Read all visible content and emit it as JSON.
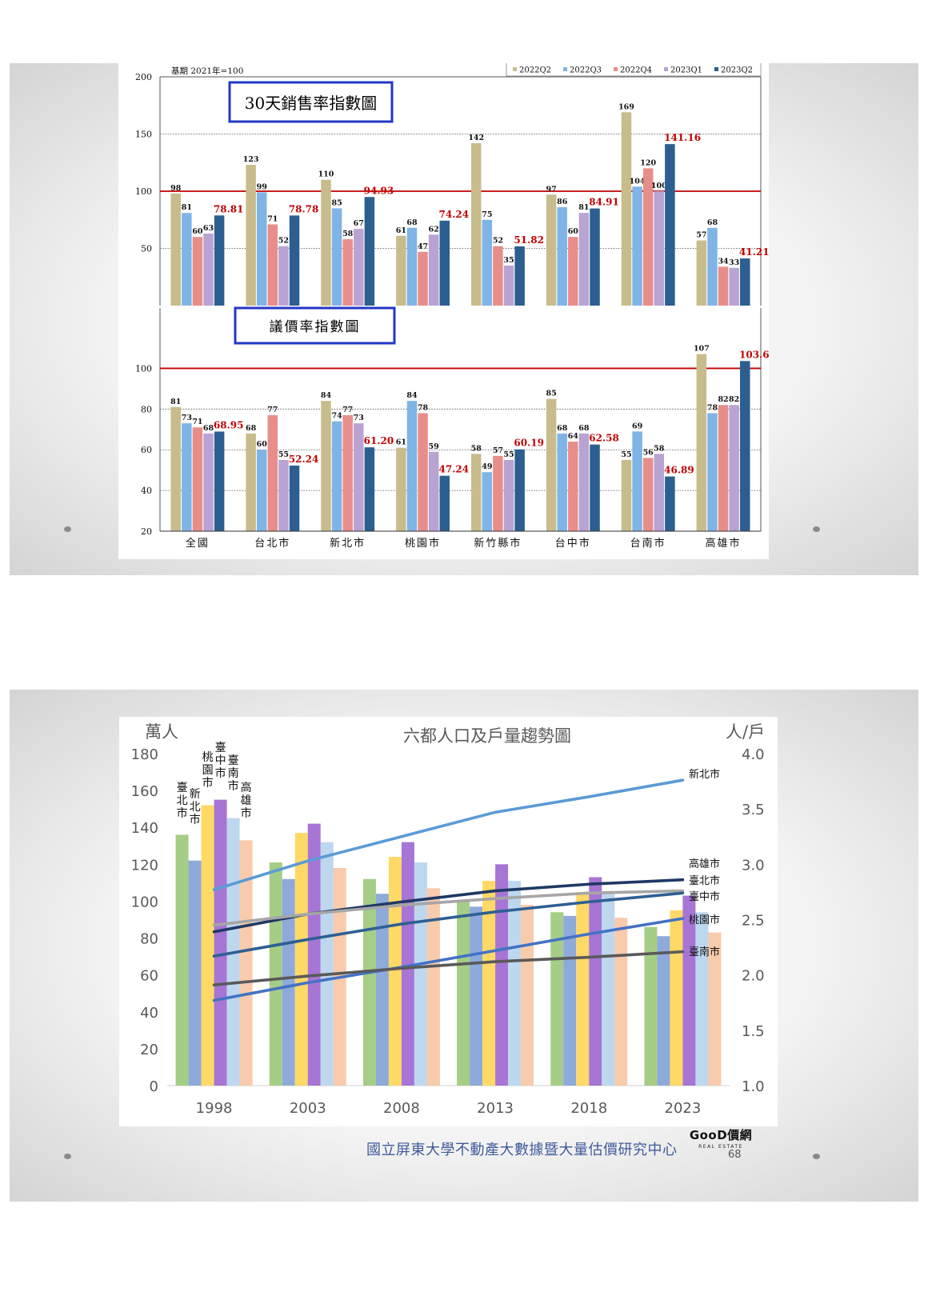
{
  "chart_data": [
    {
      "type": "bar",
      "title": "30天銷售率指數圖",
      "note": "基期 2021年=100",
      "categories": [
        "全國",
        "台北市",
        "新北市",
        "桃園市",
        "新竹縣市",
        "台中市",
        "台南市",
        "高雄市"
      ],
      "series": [
        {
          "name": "2022Q2",
          "values": [
            98,
            123,
            110,
            61,
            142,
            97,
            169,
            57
          ]
        },
        {
          "name": "2022Q3",
          "values": [
            81,
            99,
            85,
            68,
            75,
            86,
            104,
            68
          ]
        },
        {
          "name": "2022Q4",
          "values": [
            60,
            71,
            58,
            47,
            52,
            60,
            120,
            34
          ]
        },
        {
          "name": "2023Q1",
          "values": [
            63,
            52,
            67,
            62,
            35,
            81,
            100,
            33
          ]
        },
        {
          "name": "2023Q2",
          "values": [
            78.81,
            78.78,
            94.93,
            74.24,
            51.82,
            84.91,
            141.16,
            41.21
          ]
        }
      ],
      "value_labels": [
        [
          "98",
          "123",
          "110",
          "61",
          "142",
          "97",
          "169",
          "57"
        ],
        [
          "81",
          "99",
          "85",
          "68",
          "75",
          "86",
          "104",
          "68"
        ],
        [
          "60",
          "71",
          "58",
          "47",
          "52",
          "60",
          "120",
          "34"
        ],
        [
          "63",
          "52",
          "67",
          "62",
          "35",
          "81",
          "100",
          "33"
        ],
        [
          "78.81",
          "78.78",
          "94.93",
          "74.24",
          "51.82",
          "84.91",
          "141.16",
          "41.21"
        ]
      ],
      "ylim": [
        0,
        200
      ],
      "yticks": [
        "50",
        "100",
        "150",
        "200"
      ],
      "reference_line": 100,
      "legend_position": "top-right",
      "colors": [
        "#c8bc8c",
        "#7fb4e6",
        "#e88e8a",
        "#b9a3d2",
        "#2c5f90"
      ],
      "highlight_color": "#c00000"
    },
    {
      "type": "bar",
      "title": "議價率指數圖",
      "categories": [
        "全國",
        "台北市",
        "新北市",
        "桃園市",
        "新竹縣市",
        "台中市",
        "台南市",
        "高雄市"
      ],
      "series": [
        {
          "name": "2022Q2",
          "values": [
            81,
            68,
            84,
            61,
            58,
            85,
            55,
            107
          ]
        },
        {
          "name": "2022Q3",
          "values": [
            73,
            60,
            74,
            84,
            49,
            68,
            69,
            78
          ]
        },
        {
          "name": "2022Q4",
          "values": [
            71,
            77,
            77,
            78,
            57,
            64,
            56,
            82
          ]
        },
        {
          "name": "2023Q1",
          "values": [
            68,
            55,
            73,
            59,
            55,
            68,
            58,
            82
          ]
        },
        {
          "name": "2023Q2",
          "values": [
            68.95,
            52.24,
            61.2,
            47.24,
            60.19,
            62.58,
            46.89,
            103.6
          ]
        }
      ],
      "value_labels": [
        [
          "81",
          "68",
          "84",
          "61",
          "58",
          "85",
          "55",
          "107"
        ],
        [
          "73",
          "60",
          "74",
          "84",
          "49",
          "68",
          "69",
          "78"
        ],
        [
          "71",
          "77",
          "77",
          "78",
          "57",
          "64",
          "56",
          "82"
        ],
        [
          "68",
          "55",
          "73",
          "59",
          "55",
          "68",
          "58",
          "82"
        ],
        [
          "68.95",
          "52.24",
          "61.20",
          "47.24",
          "60.19",
          "62.58",
          "46.89",
          "103.60"
        ]
      ],
      "ylim": [
        20,
        110
      ],
      "yticks": [
        "20",
        "40",
        "60",
        "80",
        "100"
      ],
      "reference_line": 100,
      "colors": [
        "#c8bc8c",
        "#7fb4e6",
        "#e88e8a",
        "#b9a3d2",
        "#2c5f90"
      ],
      "highlight_color": "#c00000"
    },
    {
      "type": "bar",
      "title": "六都人口及戶量趨勢圖",
      "ylabel_left": "萬人",
      "ylabel_right": "人/戶",
      "categories": [
        "1998",
        "2003",
        "2008",
        "2013",
        "2018",
        "2023"
      ],
      "bar_labels_1998": [
        "臺北市",
        "新北市",
        "桃園市",
        "臺中市",
        "臺南市",
        "高雄市"
      ],
      "series": [
        {
          "values": [
            136,
            121,
            112,
            100,
            94,
            86
          ]
        },
        {
          "values": [
            122,
            112,
            104,
            97,
            92,
            81
          ]
        },
        {
          "values": [
            152,
            137,
            124,
            111,
            105,
            95
          ]
        },
        {
          "values": [
            155,
            142,
            132,
            120,
            113,
            103
          ]
        },
        {
          "values": [
            145,
            132,
            121,
            111,
            104,
            94
          ]
        },
        {
          "values": [
            133,
            118,
            107,
            98,
            91,
            83
          ]
        }
      ],
      "bar_colors": [
        "#a5cd86",
        "#8eaadb",
        "#ffd966",
        "#a775d4",
        "#bdd7ee",
        "#f8cbad"
      ],
      "line_series": [
        {
          "name": "新北市",
          "values": [
            2.77,
            3.03,
            3.25,
            3.47,
            3.61,
            3.76
          ],
          "color": "#5b9bd5"
        },
        {
          "name": "高雄市",
          "values": [
            2.39,
            2.55,
            2.66,
            2.76,
            2.82,
            2.86
          ],
          "color": "#1f3864"
        },
        {
          "name": "臺北市",
          "values": [
            2.45,
            2.55,
            2.63,
            2.69,
            2.74,
            2.76
          ],
          "color": "#a6a6a6"
        },
        {
          "name": "臺中市",
          "values": [
            2.17,
            2.32,
            2.46,
            2.57,
            2.66,
            2.74
          ],
          "color": "#2e5f93"
        },
        {
          "name": "桃園市",
          "values": [
            1.77,
            1.93,
            2.07,
            2.22,
            2.37,
            2.51
          ],
          "color": "#4472c4"
        },
        {
          "name": "臺南市",
          "values": [
            1.91,
            1.99,
            2.06,
            2.12,
            2.16,
            2.21
          ],
          "color": "#595959"
        }
      ],
      "ylim_left": [
        0,
        180
      ],
      "ylim_right": [
        1.0,
        4.0
      ],
      "yticks_left": [
        "0",
        "20",
        "40",
        "60",
        "80",
        "100",
        "120",
        "140",
        "160",
        "180"
      ],
      "yticks_right": [
        "1.0",
        "1.5",
        "2.0",
        "2.5",
        "3.0",
        "3.5",
        "4.0"
      ]
    }
  ],
  "footer": {
    "source": "國立屏東大學不動產大數據暨大量估價研究中心",
    "logo_main": "GooD價網",
    "logo_sub": "REAL ESTATE",
    "page_number": "68"
  }
}
